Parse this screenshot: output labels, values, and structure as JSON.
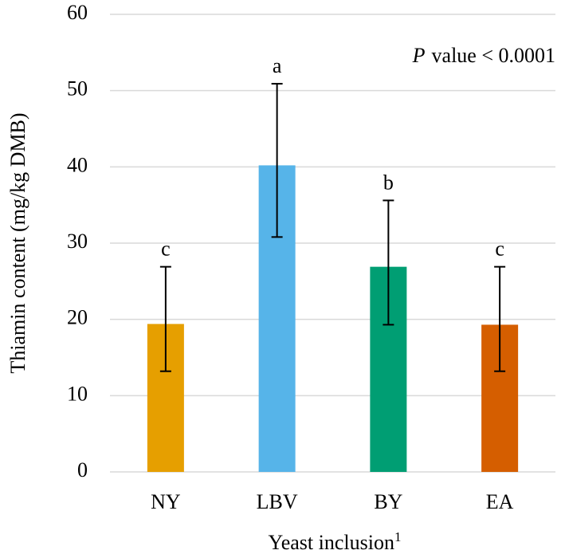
{
  "chart_data": {
    "type": "bar",
    "ylabel": "Thiamin content (mg/kg DMB)",
    "xlabel": "Yeast inclusion",
    "xlabel_superscript": "1",
    "annotation_italic": "P",
    "annotation": "value < 0.0001",
    "categories": [
      "NY",
      "LBV",
      "BY",
      "EA"
    ],
    "values": [
      19.4,
      40.2,
      26.9,
      19.3
    ],
    "error_lower": [
      13.2,
      30.8,
      19.3,
      13.2
    ],
    "error_upper": [
      26.9,
      50.9,
      35.6,
      26.9
    ],
    "letters": [
      "c",
      "a",
      "b",
      "c"
    ],
    "colors": [
      "#e69f00",
      "#56b4e9",
      "#009e73",
      "#d55e00"
    ],
    "ylim": [
      0,
      60
    ],
    "yticks": [
      0,
      10,
      20,
      30,
      40,
      50,
      60
    ],
    "grid": true
  }
}
